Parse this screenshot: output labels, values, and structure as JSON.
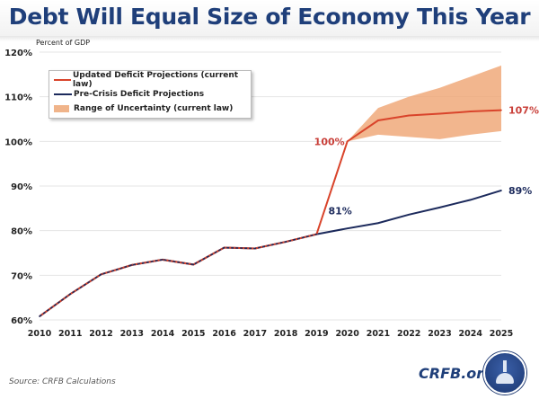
{
  "title": "Debt Will Equal Size of Economy This Year",
  "source": "Source: CRFB Calculations",
  "brand": "CRFB.org",
  "colors": {
    "title": "#1f3f7a",
    "updated": "#d9442b",
    "precrisis": "#1c2a5c",
    "range": "#f0a97a",
    "updated_label": "#c9403a",
    "precrisis_label": "#1c2a5c"
  },
  "chart_data": {
    "type": "line",
    "title": "Debt Will Equal Size of Economy This Year",
    "ylabel": "Percent of GDP",
    "xlabel": "",
    "ylim": [
      60,
      120
    ],
    "yticks": [
      60,
      70,
      80,
      90,
      100,
      110,
      120
    ],
    "ytick_labels": [
      "60%",
      "70%",
      "80%",
      "90%",
      "100%",
      "110%",
      "120%"
    ],
    "x": [
      2010,
      2011,
      2012,
      2013,
      2014,
      2015,
      2016,
      2017,
      2018,
      2019,
      2020,
      2021,
      2022,
      2023,
      2024,
      2025
    ],
    "xtick_labels": [
      "2010",
      "2011",
      "2012",
      "2013",
      "2014",
      "2015",
      "2016",
      "2017",
      "2018",
      "2019",
      "2020",
      "2021",
      "2022",
      "2023",
      "2024",
      "2025"
    ],
    "grid": true,
    "legend_position": "top-left",
    "series": [
      {
        "name": "Updated Deficit Projections (current law)",
        "key": "updated",
        "values": [
          60.8,
          65.8,
          70.2,
          72.3,
          73.5,
          72.4,
          76.2,
          76.0,
          77.5,
          79.2,
          100.0,
          104.7,
          105.8,
          106.2,
          106.7,
          107.0
        ]
      },
      {
        "name": "Pre-Crisis Deficit Projections",
        "key": "precrisis",
        "values": [
          60.8,
          65.8,
          70.2,
          72.3,
          73.5,
          72.4,
          76.2,
          76.0,
          77.5,
          79.2,
          80.5,
          81.7,
          83.6,
          85.2,
          86.9,
          89.0
        ]
      }
    ],
    "range": {
      "name": "Range of Uncertainty (current law)",
      "x": [
        2020,
        2021,
        2022,
        2023,
        2024,
        2025
      ],
      "low": [
        100.0,
        101.5,
        101.0,
        100.5,
        101.5,
        102.3
      ],
      "high": [
        100.0,
        107.5,
        110.0,
        112.0,
        114.5,
        117.0
      ]
    },
    "annotations": [
      {
        "text": "100%",
        "x": 2020,
        "y": 100,
        "series": "updated"
      },
      {
        "text": "107%",
        "x": 2025,
        "y": 107,
        "series": "updated"
      },
      {
        "text": "81%",
        "x": 2020,
        "y": 81,
        "series": "precrisis"
      },
      {
        "text": "89%",
        "x": 2025,
        "y": 89,
        "series": "precrisis"
      }
    ]
  }
}
